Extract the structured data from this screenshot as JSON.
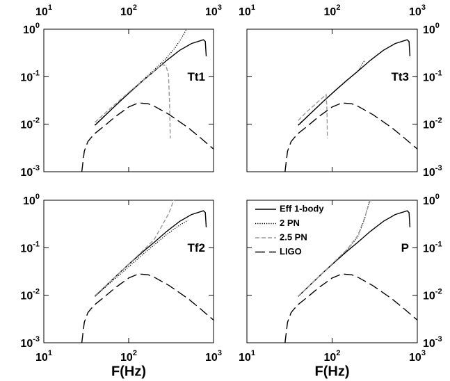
{
  "chart_data": [
    {
      "type": "line",
      "label": "Tt1",
      "xaxis_side": "top",
      "yaxis_side": "left",
      "xscale": "log",
      "yscale": "log",
      "xlim": [
        10,
        1000
      ],
      "ylim": [
        0.001,
        1
      ],
      "xticks": [
        {
          "value": 10,
          "label": "10^1"
        },
        {
          "value": 100,
          "label": "10^2"
        },
        {
          "value": 1000,
          "label": "10^3"
        }
      ],
      "yticks": [
        {
          "value": 0.001,
          "label": "10^-3"
        },
        {
          "value": 0.01,
          "label": "10^-2"
        },
        {
          "value": 0.1,
          "label": "10^-1"
        },
        {
          "value": 1,
          "label": "10^0"
        }
      ],
      "series": [
        {
          "color": "#000000",
          "dash": "solid",
          "x": [
            40,
            60,
            80,
            110,
            150,
            200,
            280,
            400,
            550,
            760,
            800,
            820
          ],
          "values": [
            0.0095,
            0.019,
            0.031,
            0.052,
            0.085,
            0.13,
            0.22,
            0.36,
            0.5,
            0.6,
            0.55,
            0.27
          ]
        },
        {
          "color": "#000000",
          "dash": "dotted",
          "x": [
            40,
            60,
            80,
            110,
            150,
            200,
            280,
            350,
            420,
            480
          ],
          "values": [
            0.0098,
            0.019,
            0.031,
            0.053,
            0.088,
            0.14,
            0.25,
            0.4,
            0.65,
            1
          ]
        },
        {
          "color": "#999999",
          "dash": "dashed",
          "x": [
            40,
            60,
            80,
            110,
            150,
            200,
            245,
            275,
            295,
            303,
            310
          ],
          "values": [
            0.011,
            0.021,
            0.033,
            0.054,
            0.085,
            0.13,
            0.18,
            0.17,
            0.11,
            0.03,
            0.005
          ]
        },
        {
          "color": "#000000",
          "dash": "longdash",
          "x": [
            28,
            30,
            33,
            36,
            40,
            50,
            70,
            100,
            130,
            170,
            200,
            300,
            500,
            700,
            1000
          ],
          "values": [
            0.001,
            0.0027,
            0.0043,
            0.0052,
            0.0064,
            0.0088,
            0.0145,
            0.023,
            0.028,
            0.027,
            0.024,
            0.016,
            0.0085,
            0.0052,
            0.003
          ]
        }
      ]
    },
    {
      "type": "line",
      "label": "Tt3",
      "xaxis_side": "top",
      "yaxis_side": "right",
      "xscale": "log",
      "yscale": "log",
      "xlim": [
        10,
        1000
      ],
      "ylim": [
        0.001,
        1
      ],
      "xticks": [
        {
          "value": 10,
          "label": "10^1"
        },
        {
          "value": 100,
          "label": "10^2"
        },
        {
          "value": 1000,
          "label": "10^3"
        }
      ],
      "yticks": [
        {
          "value": 0.001,
          "label": "10^-3"
        },
        {
          "value": 0.01,
          "label": "10^-2"
        },
        {
          "value": 0.1,
          "label": "10^-1"
        },
        {
          "value": 1,
          "label": "10^0"
        }
      ],
      "series": [
        {
          "color": "#000000",
          "dash": "solid",
          "x": [
            40,
            60,
            80,
            110,
            150,
            200,
            280,
            400,
            550,
            760,
            800,
            820
          ],
          "values": [
            0.0095,
            0.019,
            0.031,
            0.052,
            0.085,
            0.13,
            0.22,
            0.36,
            0.5,
            0.6,
            0.55,
            0.27
          ]
        },
        {
          "color": "#000000",
          "dash": "dotted",
          "x": [
            40,
            60,
            80,
            110,
            150,
            200,
            240
          ],
          "values": [
            0.0098,
            0.019,
            0.031,
            0.052,
            0.084,
            0.13,
            0.22
          ]
        },
        {
          "color": "#999999",
          "dash": "dashed",
          "x": [
            40,
            50,
            60,
            70,
            80,
            85,
            87,
            88
          ],
          "values": [
            0.012,
            0.018,
            0.024,
            0.031,
            0.038,
            0.042,
            0.02,
            0.005
          ]
        },
        {
          "color": "#000000",
          "dash": "longdash",
          "x": [
            28,
            30,
            33,
            36,
            40,
            50,
            70,
            100,
            130,
            170,
            200,
            300,
            500,
            700,
            1000
          ],
          "values": [
            0.001,
            0.0027,
            0.0043,
            0.0052,
            0.0064,
            0.0088,
            0.0145,
            0.023,
            0.028,
            0.027,
            0.024,
            0.016,
            0.0085,
            0.0052,
            0.003
          ]
        }
      ]
    },
    {
      "type": "line",
      "label": "Tf2",
      "xlabel": "F(Hz)",
      "xaxis_side": "bottom",
      "yaxis_side": "left",
      "xscale": "log",
      "yscale": "log",
      "xlim": [
        10,
        1000
      ],
      "ylim": [
        0.001,
        1
      ],
      "xticks": [
        {
          "value": 10,
          "label": "10^1"
        },
        {
          "value": 100,
          "label": "10^2"
        },
        {
          "value": 1000,
          "label": "10^3"
        }
      ],
      "yticks": [
        {
          "value": 0.001,
          "label": "10^-3"
        },
        {
          "value": 0.01,
          "label": "10^-2"
        },
        {
          "value": 0.1,
          "label": "10^-1"
        },
        {
          "value": 1,
          "label": "10^0"
        }
      ],
      "series": [
        {
          "color": "#000000",
          "dash": "solid",
          "x": [
            40,
            60,
            80,
            110,
            150,
            200,
            280,
            400,
            550,
            760,
            800,
            820
          ],
          "values": [
            0.0095,
            0.019,
            0.031,
            0.052,
            0.085,
            0.13,
            0.22,
            0.36,
            0.5,
            0.6,
            0.55,
            0.27
          ]
        },
        {
          "color": "#000000",
          "dash": "dotted",
          "x": [
            40,
            60,
            80,
            110,
            150,
            200,
            280,
            400,
            500
          ],
          "values": [
            0.0095,
            0.018,
            0.028,
            0.046,
            0.075,
            0.115,
            0.19,
            0.3,
            0.38
          ]
        },
        {
          "color": "#999999",
          "dash": "dashed",
          "x": [
            40,
            60,
            80,
            110,
            150,
            200,
            250,
            300,
            340
          ],
          "values": [
            0.0098,
            0.019,
            0.031,
            0.053,
            0.09,
            0.15,
            0.3,
            0.55,
            1
          ]
        },
        {
          "color": "#000000",
          "dash": "longdash",
          "x": [
            28,
            30,
            33,
            36,
            40,
            50,
            70,
            100,
            130,
            170,
            200,
            300,
            500,
            700,
            1000
          ],
          "values": [
            0.001,
            0.0027,
            0.0043,
            0.0052,
            0.0064,
            0.0088,
            0.0145,
            0.023,
            0.028,
            0.027,
            0.024,
            0.016,
            0.0085,
            0.0052,
            0.003
          ]
        }
      ]
    },
    {
      "type": "line",
      "label": "P",
      "xlabel": "F(Hz)",
      "xaxis_side": "bottom",
      "yaxis_side": "right",
      "xscale": "log",
      "yscale": "log",
      "legend": "upper left",
      "xlim": [
        10,
        1000
      ],
      "ylim": [
        0.001,
        1
      ],
      "xticks": [
        {
          "value": 10,
          "label": "10^1"
        },
        {
          "value": 100,
          "label": "10^2"
        },
        {
          "value": 1000,
          "label": "10^3"
        }
      ],
      "yticks": [
        {
          "value": 0.001,
          "label": "10^-3"
        },
        {
          "value": 0.01,
          "label": "10^-2"
        },
        {
          "value": 0.1,
          "label": "10^-1"
        },
        {
          "value": 1,
          "label": "10^0"
        }
      ],
      "series": [
        {
          "name": "Eff 1-body",
          "color": "#000000",
          "dash": "solid",
          "x": [
            40,
            60,
            80,
            110,
            150,
            200,
            280,
            400,
            550,
            760,
            800,
            820
          ],
          "values": [
            0.0095,
            0.019,
            0.031,
            0.052,
            0.085,
            0.13,
            0.22,
            0.36,
            0.5,
            0.6,
            0.55,
            0.27
          ]
        },
        {
          "name": "2 PN",
          "color": "#000000",
          "dash": "dotted",
          "x": [
            40,
            60,
            80,
            110,
            150,
            200,
            240,
            275
          ],
          "values": [
            0.0095,
            0.019,
            0.031,
            0.053,
            0.09,
            0.17,
            0.4,
            1
          ]
        },
        {
          "name": "2.5 PN",
          "color": "#999999",
          "dash": "dashed",
          "x": [
            40,
            60,
            80,
            110,
            150,
            200,
            240,
            280
          ],
          "values": [
            0.0096,
            0.019,
            0.031,
            0.054,
            0.092,
            0.18,
            0.42,
            1
          ]
        },
        {
          "name": "LIGO",
          "color": "#000000",
          "dash": "longdash",
          "x": [
            28,
            30,
            33,
            36,
            40,
            50,
            70,
            100,
            130,
            170,
            200,
            300,
            500,
            700,
            1000
          ],
          "values": [
            0.001,
            0.0027,
            0.0043,
            0.0052,
            0.0064,
            0.0088,
            0.0145,
            0.023,
            0.028,
            0.027,
            0.024,
            0.016,
            0.0085,
            0.0052,
            0.003
          ]
        }
      ]
    }
  ]
}
